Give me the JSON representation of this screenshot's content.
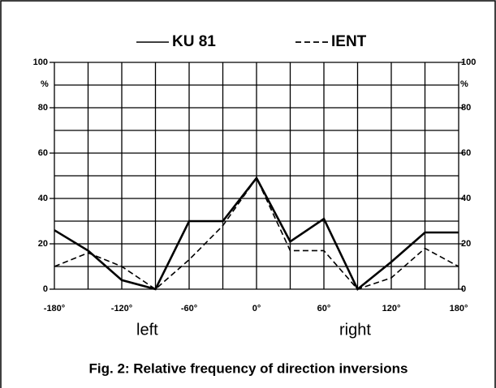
{
  "chart_data": {
    "type": "line",
    "caption": "Fig. 2: Relative frequency of direction inversions",
    "x_side_labels": [
      "left",
      "right"
    ],
    "y_unit": "%",
    "x": [
      -180,
      -150,
      -120,
      -90,
      -60,
      -30,
      0,
      30,
      60,
      90,
      120,
      150,
      180
    ],
    "series": [
      {
        "name": "KU 81",
        "color": "#000000",
        "dash": false,
        "values": [
          26,
          17,
          4,
          0,
          30,
          30,
          49,
          21,
          31,
          0,
          12,
          25,
          25
        ]
      },
      {
        "name": "IENT",
        "color": "#000000",
        "dash": true,
        "values": [
          10,
          16,
          10,
          0,
          13,
          28,
          49,
          17,
          17,
          0,
          5,
          18,
          10
        ]
      }
    ],
    "xlim": [
      -180,
      180
    ],
    "xticks": [
      {
        "value": -180,
        "label": "-180°"
      },
      {
        "value": -120,
        "label": "-120°"
      },
      {
        "value": -60,
        "label": "-60°"
      },
      {
        "value": 0,
        "label": "0°"
      },
      {
        "value": 60,
        "label": "60°"
      },
      {
        "value": 120,
        "label": "120°"
      },
      {
        "value": 180,
        "label": "180°"
      }
    ],
    "xgrid": [
      -180,
      -150,
      -120,
      -90,
      -60,
      -30,
      0,
      30,
      60,
      90,
      120,
      150,
      180
    ],
    "ylim": [
      0,
      100
    ],
    "yticks": [
      0,
      20,
      40,
      60,
      80,
      100
    ],
    "ygrid": [
      0,
      10,
      20,
      30,
      40,
      50,
      60,
      70,
      80,
      90,
      100
    ]
  }
}
